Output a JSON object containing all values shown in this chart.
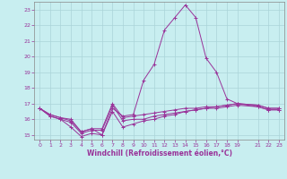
{
  "xlabel": "Windchill (Refroidissement éolien,°C)",
  "background_color": "#c8eef0",
  "grid_color": "#aad4d8",
  "line_color": "#993399",
  "xlim": [
    -0.5,
    23.5
  ],
  "ylim": [
    14.7,
    23.5
  ],
  "yticks": [
    15,
    16,
    17,
    18,
    19,
    20,
    21,
    22,
    23
  ],
  "xticks": [
    0,
    1,
    2,
    3,
    4,
    5,
    6,
    7,
    8,
    9,
    10,
    11,
    12,
    13,
    14,
    15,
    16,
    17,
    18,
    19,
    21,
    22,
    23
  ],
  "series": [
    {
      "x": [
        0,
        1,
        2,
        3,
        4,
        5,
        6,
        7,
        8,
        9,
        10,
        11,
        12,
        13,
        14,
        15,
        16,
        17,
        18,
        19,
        21,
        22,
        23
      ],
      "y": [
        16.7,
        16.2,
        16.0,
        15.8,
        15.1,
        15.3,
        15.3,
        16.9,
        15.9,
        16.0,
        16.0,
        16.2,
        16.3,
        16.4,
        16.5,
        16.6,
        16.7,
        16.7,
        16.8,
        16.9,
        16.8,
        16.6,
        16.6
      ]
    },
    {
      "x": [
        0,
        1,
        2,
        3,
        4,
        5,
        6,
        7,
        8,
        9,
        10,
        11,
        12,
        13,
        14,
        15,
        16,
        17,
        18,
        19,
        21,
        22,
        23
      ],
      "y": [
        16.7,
        16.2,
        16.0,
        15.5,
        14.9,
        15.1,
        15.0,
        16.5,
        15.5,
        15.7,
        15.9,
        16.0,
        16.2,
        16.3,
        16.5,
        16.6,
        16.7,
        16.8,
        16.9,
        17.0,
        16.9,
        16.7,
        16.7
      ]
    },
    {
      "x": [
        0,
        1,
        2,
        3,
        4,
        5,
        6,
        7,
        8,
        9,
        10,
        11,
        12,
        13,
        14,
        15,
        16,
        17,
        18,
        19,
        21,
        22,
        23
      ],
      "y": [
        16.7,
        16.3,
        16.1,
        16.0,
        15.2,
        15.4,
        15.4,
        17.0,
        16.1,
        16.2,
        16.3,
        16.4,
        16.5,
        16.6,
        16.7,
        16.7,
        16.8,
        16.8,
        16.9,
        17.0,
        16.9,
        16.7,
        16.7
      ]
    },
    {
      "x": [
        0,
        1,
        2,
        3,
        4,
        5,
        6,
        7,
        8,
        9,
        10,
        11,
        12,
        13,
        14,
        15,
        16,
        17,
        18,
        19,
        21,
        22,
        23
      ],
      "y": [
        16.7,
        16.3,
        16.1,
        15.9,
        15.2,
        15.4,
        15.0,
        16.7,
        16.2,
        16.3,
        18.5,
        19.5,
        21.7,
        22.5,
        23.3,
        22.5,
        19.9,
        19.0,
        17.3,
        17.0,
        16.8,
        16.6,
        16.6
      ]
    }
  ]
}
